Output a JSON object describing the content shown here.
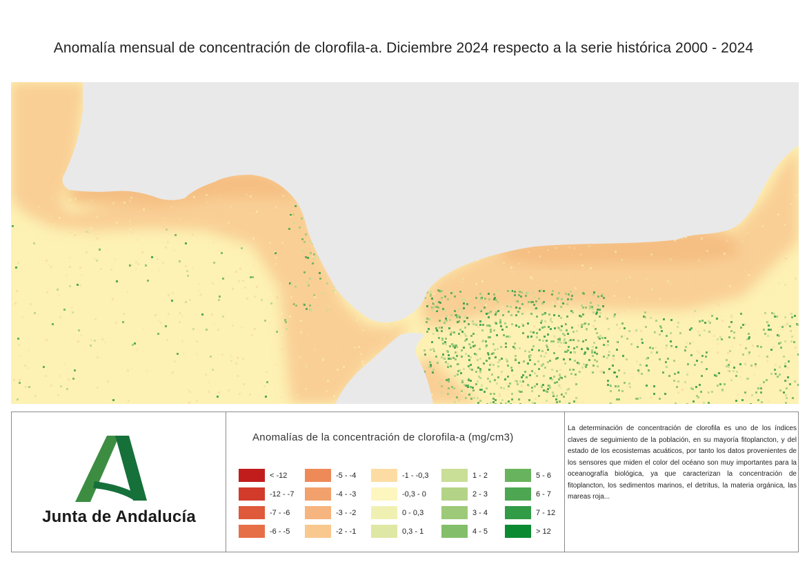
{
  "title": "Anomalía mensual de concentración de clorofila-a. Diciembre 2024 respecto a la serie histórica 2000 - 2024",
  "map": {
    "colors": {
      "land": "#e9e9e9",
      "sea_background": "#fdf1b3",
      "coastal_band": "#f9cf95",
      "coastal_deep": "#f5be82"
    }
  },
  "logo": {
    "text": "Junta de Andalucía",
    "mark_color_light": "#3c8d42",
    "mark_color_dark": "#16703a"
  },
  "legend": {
    "title": "Anomalías de la concentración de clorofila-a (mg/cm3)",
    "columns": [
      [
        {
          "label": "< -12",
          "color": "#c21d1d"
        },
        {
          "label": "-12 - -7",
          "color": "#d23a2a"
        },
        {
          "label": "-7 - -6",
          "color": "#de5a3a"
        },
        {
          "label": "-6 - -5",
          "color": "#e76f48"
        }
      ],
      [
        {
          "label": "-5 - -4",
          "color": "#ee8a58"
        },
        {
          "label": "-4 - -3",
          "color": "#f2a06c"
        },
        {
          "label": "-3 - -2",
          "color": "#f6b47e"
        },
        {
          "label": "-2 - -1",
          "color": "#f9c88f"
        }
      ],
      [
        {
          "label": "-1 - -0,3",
          "color": "#fddca3"
        },
        {
          "label": "-0,3 - 0",
          "color": "#fdf6bf"
        },
        {
          "label": "0 - 0,3",
          "color": "#f0f0b3"
        },
        {
          "label": "0,3 - 1",
          "color": "#dfe7a4"
        }
      ],
      [
        {
          "label": "1 - 2",
          "color": "#c9de97"
        },
        {
          "label": "2 - 3",
          "color": "#b3d487"
        },
        {
          "label": "3 - 4",
          "color": "#9cca78"
        },
        {
          "label": "4 - 5",
          "color": "#83bf6a"
        }
      ],
      [
        {
          "label": "5 - 6",
          "color": "#68b35d"
        },
        {
          "label": "6 - 7",
          "color": "#4da651"
        },
        {
          "label": "7 - 12",
          "color": "#319b45"
        },
        {
          "label": "> 12",
          "color": "#0c8a32"
        }
      ]
    ]
  },
  "description": "La determinación de concentración de clorofila es uno de los índices claves de seguimiento de la población, en su mayoría fitoplancton, y del estado de los ecosistemas acuáticos, por tanto los datos provenientes de los sensores que miden el color del océano son muy importantes para la oceanografía biológica, ya que caracterizan la concentración de fitoplancton, los sedimentos marinos, el detritus, la materia orgánica, las mareas roja..."
}
